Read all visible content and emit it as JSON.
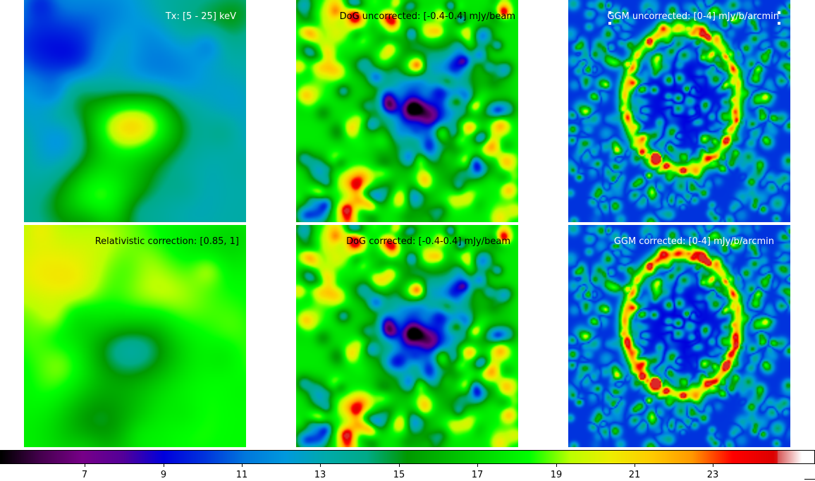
{
  "panels": [
    {
      "id": "tx",
      "label": "Tx: [5 - 25] keV",
      "label_color": "#ffffff",
      "field_kind": "temperature"
    },
    {
      "id": "dog-uncorrected",
      "label": "DoG uncorrected: [-0.4-0.4] mJy/beam",
      "label_color": "#000000",
      "field_kind": "dog"
    },
    {
      "id": "ggm-uncorrected",
      "label": "GGM uncorrected: [0-4] mJy/b/arcmin",
      "label_color": "#ffffff",
      "field_kind": "ggm"
    },
    {
      "id": "relativistic-correction",
      "label": "Relativistic correction: [0.85, 1]",
      "label_color": "#000000",
      "field_kind": "correction"
    },
    {
      "id": "dog-corrected",
      "label": "DoG corrected: [-0.4-0.4] mJy/beam",
      "label_color": "#000000",
      "field_kind": "dog_corrected"
    },
    {
      "id": "ggm-corrected",
      "label": "GGM corrected: [0-4] mJy/b/arcmin",
      "label_color": "#ffffff",
      "field_kind": "ggm_corrected"
    }
  ],
  "colorbar": {
    "colormap": "nipy_spectral",
    "min": 5,
    "max": 25,
    "ticks": [
      "7",
      "9",
      "11",
      "13",
      "15",
      "17",
      "19",
      "21",
      "23"
    ],
    "tick_values": [
      7,
      9,
      11,
      13,
      15,
      17,
      19,
      21,
      23
    ]
  }
}
